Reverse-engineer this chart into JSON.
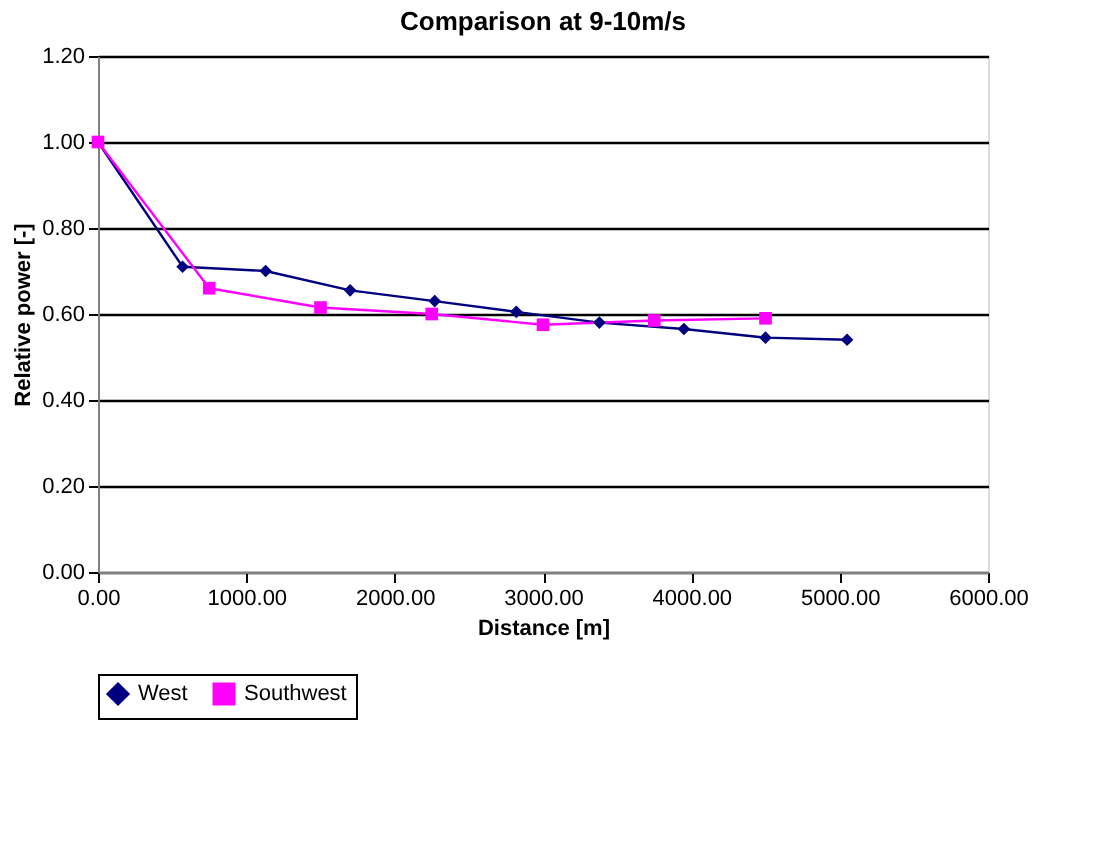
{
  "chart_data": {
    "type": "line",
    "title": "Comparison at 9-10m/s",
    "xlabel": "Distance [m]",
    "ylabel": "Relative power [-]",
    "xlim": [
      0,
      6000
    ],
    "xticks": [
      {
        "value": 0,
        "label": "0.00"
      },
      {
        "value": 1000,
        "label": "1000.00"
      },
      {
        "value": 2000,
        "label": "2000.00"
      },
      {
        "value": 3000,
        "label": "3000.00"
      },
      {
        "value": 4000,
        "label": "4000.00"
      },
      {
        "value": 5000,
        "label": "5000.00"
      },
      {
        "value": 6000,
        "label": "6000.00"
      }
    ],
    "ylim": [
      0,
      1.2
    ],
    "yticks": [
      {
        "value": 0,
        "label": "0.00"
      },
      {
        "value": 0.2,
        "label": "0.20"
      },
      {
        "value": 0.4,
        "label": "0.40"
      },
      {
        "value": 0.6,
        "label": "0.60"
      },
      {
        "value": 0.8,
        "label": "0.80"
      },
      {
        "value": 1.0,
        "label": "1.00"
      },
      {
        "value": 1.2,
        "label": "1.20"
      }
    ],
    "grid": "y",
    "legend": "bottom",
    "series": [
      {
        "name": "West",
        "color": "#000080",
        "marker": "diamond",
        "x": [
          0,
          570,
          1130,
          1700,
          2270,
          2820,
          3380,
          3950,
          4500,
          5050
        ],
        "values": [
          1.0,
          0.71,
          0.7,
          0.655,
          0.63,
          0.605,
          0.58,
          0.565,
          0.545,
          0.54
        ]
      },
      {
        "name": "Southwest",
        "color": "#ff00ff",
        "marker": "square",
        "x": [
          0,
          750,
          1500,
          2250,
          3000,
          3750,
          4500
        ],
        "values": [
          1.0,
          0.66,
          0.615,
          0.6,
          0.575,
          0.585,
          0.59
        ]
      }
    ]
  }
}
